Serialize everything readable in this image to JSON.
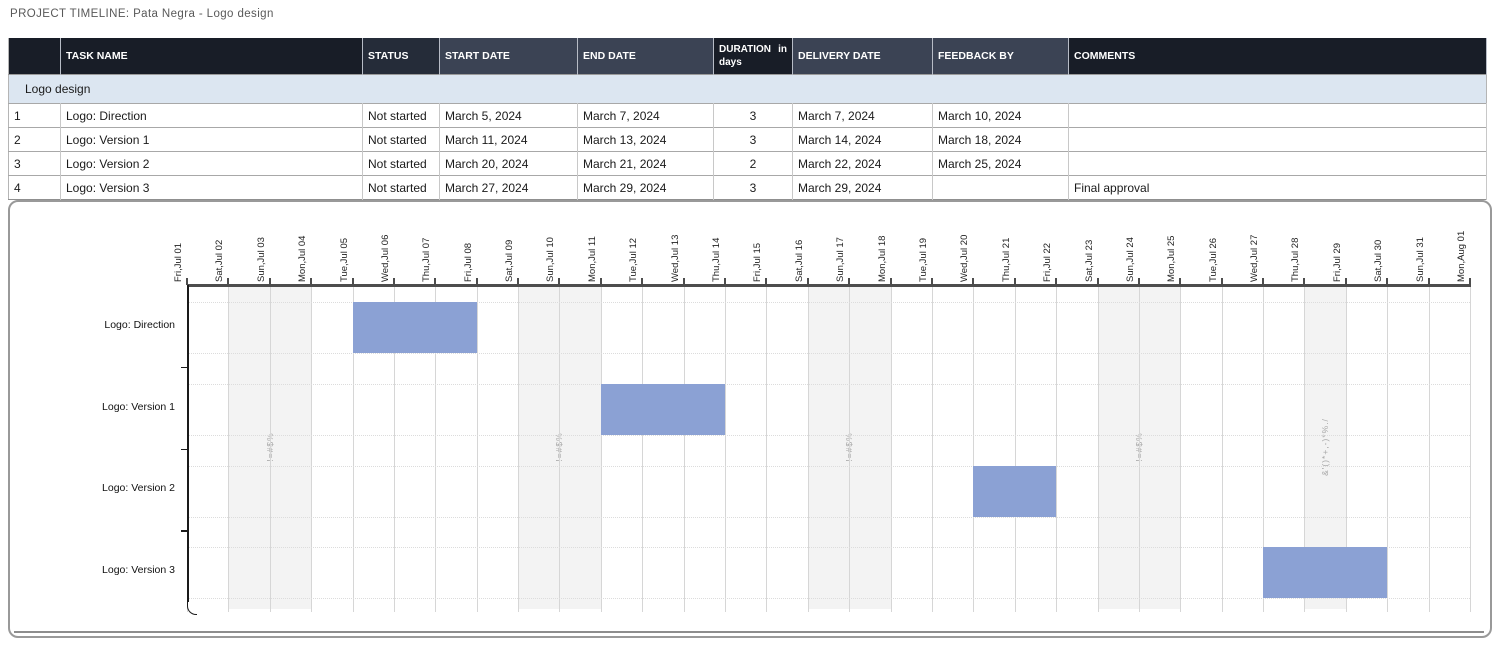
{
  "page": {
    "title": "PROJECT TIMELINE: Pata Negra - Logo design"
  },
  "table": {
    "headers": [
      "",
      "TASK NAME",
      "STATUS",
      "START DATE",
      "END DATE",
      "DURATION in days",
      "DELIVERY DATE",
      "FEEDBACK BY",
      "COMMENTS"
    ],
    "section_label": "Logo design",
    "rows": [
      {
        "num": "1",
        "task": "Logo: Direction",
        "status": "Not started",
        "start": "March 5, 2024",
        "end": "March 7, 2024",
        "duration": "3",
        "delivery": "March 7, 2024",
        "feedback": "March 10, 2024",
        "comments": ""
      },
      {
        "num": "2",
        "task": "Logo: Version 1",
        "status": "Not started",
        "start": "March 11, 2024",
        "end": "March 13, 2024",
        "duration": "3",
        "delivery": "March 14, 2024",
        "feedback": "March 18, 2024",
        "comments": ""
      },
      {
        "num": "3",
        "task": "Logo: Version 2",
        "status": "Not started",
        "start": "March 20, 2024",
        "end": "March 21, 2024",
        "duration": "2",
        "delivery": "March 22, 2024",
        "feedback": "March 25, 2024",
        "comments": ""
      },
      {
        "num": "4",
        "task": "Logo: Version 3",
        "status": "Not started",
        "start": "March 27, 2024",
        "end": "March 29, 2024",
        "duration": "3",
        "delivery": "March 29, 2024",
        "feedback": "",
        "comments": "Final approval"
      }
    ]
  },
  "chart_data": {
    "type": "gantt",
    "x_axis_dates": [
      "Fri,Jul 01",
      "Sat,Jul 02",
      "Sun,Jul 03",
      "Mon,Jul 04",
      "Tue,Jul 05",
      "Wed,Jul 06",
      "Thu,Jul 07",
      "Fri,Jul 08",
      "Sat,Jul 09",
      "Sun,Jul 10",
      "Mon,Jul 11",
      "Tue,Jul 12",
      "Wed,Jul 13",
      "Thu,Jul 14",
      "Fri,Jul 15",
      "Sat,Jul 16",
      "Sun,Jul 17",
      "Mon,Jul 18",
      "Tue,Jul 19",
      "Wed,Jul 20",
      "Thu,Jul 21",
      "Fri,Jul 22",
      "Sat,Jul 23",
      "Sun,Jul 24",
      "Mon,Jul 25",
      "Tue,Jul 26",
      "Wed,Jul 27",
      "Thu,Jul 28",
      "Fri,Jul 29",
      "Sat,Jul 30",
      "Sun,Jul 31",
      "Mon,Aug 01"
    ],
    "tasks": [
      {
        "label": "Logo: Direction",
        "start_day_index": 4,
        "end_day_index": 7
      },
      {
        "label": "Logo: Version 1",
        "start_day_index": 10,
        "end_day_index": 13
      },
      {
        "label": "Logo: Version 2",
        "start_day_index": 19,
        "end_day_index": 21
      },
      {
        "label": "Logo: Version 3",
        "start_day_index": 26,
        "end_day_index": 29
      }
    ],
    "shaded_bands": [
      {
        "from_day_index": 1,
        "to_day_index": 3,
        "watermark": "!=#$%"
      },
      {
        "from_day_index": 8,
        "to_day_index": 10,
        "watermark": "!=#$%"
      },
      {
        "from_day_index": 15,
        "to_day_index": 17,
        "watermark": "!=#$%"
      },
      {
        "from_day_index": 22,
        "to_day_index": 24,
        "watermark": "!=#$%"
      },
      {
        "from_day_index": 27,
        "to_day_index": 28,
        "watermark": "&'()*+,-)*%./"
      }
    ],
    "colors": {
      "bar": "#8ba1d4",
      "weekend_band": "#f3f3f3",
      "header_darkest": "#181d27",
      "header_dark": "#252c39",
      "header_slate": "#3b4354",
      "section_row": "#dce6f1"
    }
  }
}
